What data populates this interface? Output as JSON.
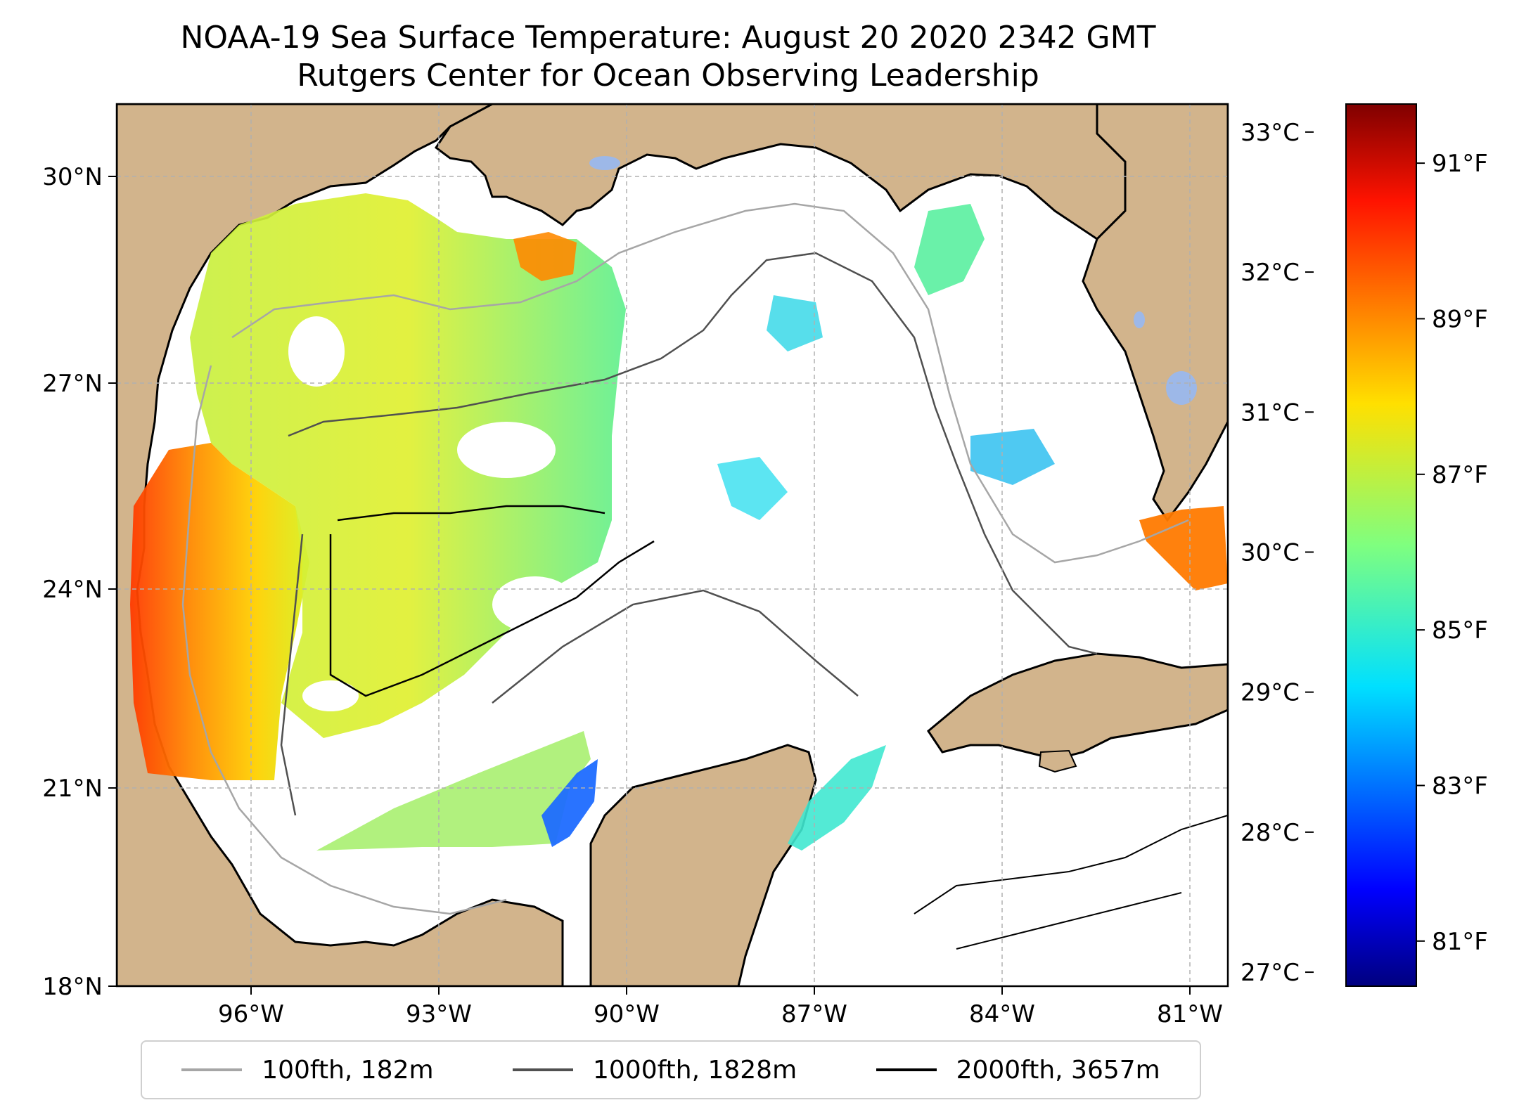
{
  "title": {
    "line1": "NOAA-19 Sea Surface Temperature: August 20 2020 2342 GMT",
    "line2": "Rutgers Center for Ocean Observing Leadership"
  },
  "map": {
    "lat_ticks": [
      "30°N",
      "27°N",
      "24°N",
      "21°N",
      "18°N"
    ],
    "lon_ticks": [
      "96°W",
      "93°W",
      "90°W",
      "87°W",
      "84°W",
      "81°W"
    ],
    "lat_range": [
      18,
      31
    ],
    "lon_range": [
      -98.3,
      -80.6
    ],
    "land_color": "#d2b48c",
    "lake_color": "#9db8e8",
    "gridlines": true
  },
  "legend": {
    "items": [
      {
        "label": "100fth, 182m",
        "color": "#a6a6a6"
      },
      {
        "label": "1000fth, 1828m",
        "color": "#505050"
      },
      {
        "label": "2000fth, 3657m",
        "color": "#000000"
      }
    ],
    "placement": "bottom-center"
  },
  "colorbar": {
    "colormap": "jet",
    "celsius_ticks": [
      "33°C",
      "32°C",
      "31°C",
      "30°C",
      "29°C",
      "28°C",
      "27°C"
    ],
    "fahrenheit_ticks": [
      "91°F",
      "89°F",
      "87°F",
      "85°F",
      "83°F",
      "81°F"
    ],
    "range_celsius": [
      26.9,
      33.2
    ],
    "range_fahrenheit": [
      80.42,
      91.76
    ]
  }
}
